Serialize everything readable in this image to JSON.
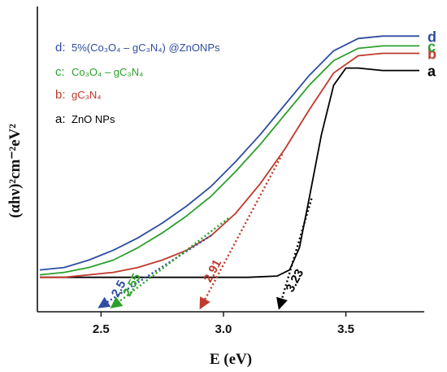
{
  "chart_data": {
    "type": "line",
    "xlabel": "E (eV)",
    "ylabel": "(αhν)²cm⁻²eV²",
    "xlim": [
      2.24,
      3.82
    ],
    "ylim": [
      -0.14,
      1.1
    ],
    "x_ticks": [
      2.5,
      3.0,
      3.5
    ],
    "x_tick_labels": [
      "2.5",
      "3.0",
      "3.5"
    ],
    "y_ticks": [],
    "grid": false,
    "legend": {
      "placement": "top-left",
      "entries": [
        {
          "key": "d:",
          "label": "5%(Co₃O₄ – gC₃N₄) @ZnONPs",
          "color": "#2f4da0"
        },
        {
          "key": "c:",
          "label": "Co₃O₄ – gC₃N₄",
          "color": "#2ca02c"
        },
        {
          "key": "b:",
          "label": "gC₃N₄",
          "color": "#c0392b"
        },
        {
          "key": "a:",
          "label": "ZnO NPs",
          "color": "#000000"
        }
      ]
    },
    "series": [
      {
        "end_label": "d",
        "color": "#2f4da0",
        "x": [
          2.25,
          2.35,
          2.45,
          2.55,
          2.65,
          2.75,
          2.85,
          2.95,
          3.05,
          3.15,
          3.25,
          3.35,
          3.45,
          3.55,
          3.65,
          3.75,
          3.8
        ],
        "y": [
          0.03,
          0.04,
          0.07,
          0.11,
          0.16,
          0.22,
          0.29,
          0.37,
          0.47,
          0.58,
          0.7,
          0.82,
          0.92,
          0.97,
          0.98,
          0.98,
          0.98
        ]
      },
      {
        "end_label": "c",
        "color": "#2ca02c",
        "x": [
          2.25,
          2.35,
          2.45,
          2.55,
          2.65,
          2.75,
          2.85,
          2.95,
          3.05,
          3.15,
          3.25,
          3.35,
          3.45,
          3.55,
          3.65,
          3.75,
          3.8
        ],
        "y": [
          0.01,
          0.02,
          0.04,
          0.07,
          0.12,
          0.18,
          0.25,
          0.33,
          0.43,
          0.54,
          0.66,
          0.78,
          0.88,
          0.93,
          0.94,
          0.94,
          0.94
        ]
      },
      {
        "end_label": "b",
        "color": "#c0392b",
        "x": [
          2.25,
          2.35,
          2.45,
          2.55,
          2.65,
          2.75,
          2.85,
          2.95,
          3.05,
          3.15,
          3.25,
          3.35,
          3.45,
          3.55,
          3.65,
          3.75,
          3.8
        ],
        "y": [
          0.0,
          0.0,
          0.01,
          0.02,
          0.04,
          0.07,
          0.11,
          0.17,
          0.26,
          0.38,
          0.52,
          0.68,
          0.83,
          0.9,
          0.91,
          0.91,
          0.91
        ]
      },
      {
        "end_label": "a",
        "color": "#000000",
        "x": [
          2.25,
          2.5,
          2.8,
          3.1,
          3.22,
          3.27,
          3.31,
          3.35,
          3.4,
          3.45,
          3.5,
          3.55,
          3.65,
          3.75,
          3.8
        ],
        "y": [
          0.0,
          0.0,
          0.0,
          0.0,
          0.005,
          0.03,
          0.12,
          0.32,
          0.58,
          0.78,
          0.85,
          0.85,
          0.84,
          0.84,
          0.84
        ]
      }
    ],
    "annotations": [
      {
        "text": "2.5",
        "x": 2.5,
        "color": "#2f4da0"
      },
      {
        "text": "2.55",
        "x": 2.55,
        "color": "#2ca02c"
      },
      {
        "text": "2.91",
        "x": 2.91,
        "color": "#c0392b"
      },
      {
        "text": "3.23",
        "x": 3.23,
        "color": "#000000"
      }
    ]
  }
}
